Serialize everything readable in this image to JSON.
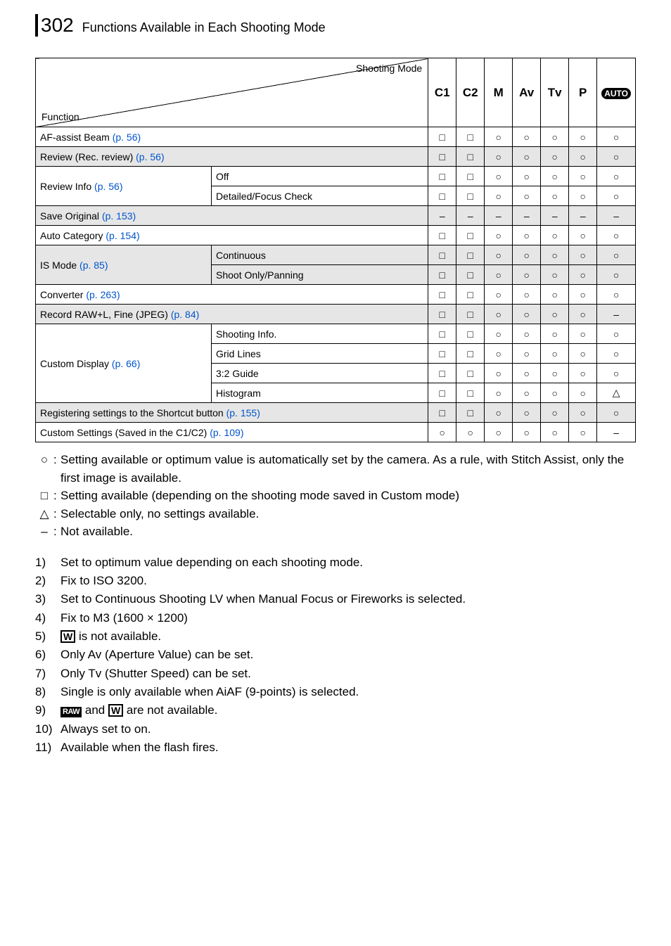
{
  "header": {
    "page_number": "302",
    "title": "Functions Available in Each Shooting Mode"
  },
  "table": {
    "corner": {
      "top": "Shooting Mode",
      "bottom": "Function"
    },
    "modes": [
      "C1",
      "C2",
      "M",
      "Av",
      "Tv",
      "P",
      "AUTO"
    ],
    "rows": [
      {
        "shaded": false,
        "label_parts": [
          "AF-assist Beam ",
          "(p. 56)"
        ],
        "span": 2,
        "cells": [
          "□",
          "□",
          "○",
          "○",
          "○",
          "○",
          "○"
        ]
      },
      {
        "shaded": true,
        "label_parts": [
          "Review (Rec. review) ",
          "(p. 56)"
        ],
        "span": 2,
        "cells": [
          "□",
          "□",
          "○",
          "○",
          "○",
          "○",
          "○"
        ]
      },
      {
        "shaded": false,
        "group_parts": [
          "Review Info ",
          "(p. 56)"
        ],
        "group_rows": 2,
        "sub": "Off",
        "cells": [
          "□",
          "□",
          "○",
          "○",
          "○",
          "○",
          "○"
        ]
      },
      {
        "shaded": false,
        "sub": "Detailed/Focus Check",
        "cells": [
          "□",
          "□",
          "○",
          "○",
          "○",
          "○",
          "○"
        ]
      },
      {
        "shaded": true,
        "label_parts": [
          "Save Original ",
          "(p. 153)"
        ],
        "span": 2,
        "cells": [
          "–",
          "–",
          "–",
          "–",
          "–",
          "–",
          "–"
        ]
      },
      {
        "shaded": false,
        "label_parts": [
          "Auto Category ",
          "(p. 154)"
        ],
        "span": 2,
        "cells": [
          "□",
          "□",
          "○",
          "○",
          "○",
          "○",
          "○"
        ]
      },
      {
        "shaded": true,
        "group_parts": [
          "IS Mode ",
          "(p. 85)"
        ],
        "group_rows": 2,
        "sub": "Continuous",
        "cells": [
          "□",
          "□",
          "○",
          "○",
          "○",
          "○",
          "○"
        ]
      },
      {
        "shaded": true,
        "sub": "Shoot Only/Panning",
        "cells": [
          "□",
          "□",
          "○",
          "○",
          "○",
          "○",
          "○"
        ]
      },
      {
        "shaded": false,
        "label_parts": [
          "Converter ",
          "(p. 263)"
        ],
        "span": 2,
        "cells": [
          "□",
          "□",
          "○",
          "○",
          "○",
          "○",
          "○"
        ]
      },
      {
        "shaded": true,
        "label_parts": [
          "Record RAW+L, Fine (JPEG) ",
          "(p. 84)"
        ],
        "span": 2,
        "cells": [
          "□",
          "□",
          "○",
          "○",
          "○",
          "○",
          "–"
        ]
      },
      {
        "shaded": false,
        "group_parts": [
          "Custom Display ",
          "(p. 66)"
        ],
        "group_rows": 4,
        "sub": "Shooting Info.",
        "cells": [
          "□",
          "□",
          "○",
          "○",
          "○",
          "○",
          "○"
        ]
      },
      {
        "shaded": false,
        "sub": "Grid Lines",
        "cells": [
          "□",
          "□",
          "○",
          "○",
          "○",
          "○",
          "○"
        ]
      },
      {
        "shaded": false,
        "sub": "3:2 Guide",
        "cells": [
          "□",
          "□",
          "○",
          "○",
          "○",
          "○",
          "○"
        ]
      },
      {
        "shaded": false,
        "sub": "Histogram",
        "cells": [
          "□",
          "□",
          "○",
          "○",
          "○",
          "○",
          "△"
        ]
      },
      {
        "shaded": true,
        "label_parts": [
          "Registering settings to the Shortcut button ",
          "(p. 155)"
        ],
        "span": 2,
        "cells": [
          "□",
          "□",
          "○",
          "○",
          "○",
          "○",
          "○"
        ]
      },
      {
        "shaded": false,
        "label_parts": [
          "Custom Settings (Saved in the C1/C2) ",
          "(p. 109)"
        ],
        "span": 2,
        "cells": [
          "○",
          "○",
          "○",
          "○",
          "○",
          "○",
          "–"
        ]
      }
    ]
  },
  "legend": [
    {
      "sym": "○",
      "text": "Setting available or optimum value is automatically set by the camera. As a rule, with Stitch Assist, only the first image is available."
    },
    {
      "sym": "□",
      "text": "Setting available (depending on the shooting mode saved in Custom mode)"
    },
    {
      "sym": "△",
      "text": "Selectable only, no settings available."
    },
    {
      "sym": "–",
      "text": "Not available."
    }
  ],
  "notes": [
    {
      "n": "1)",
      "html": "Set to optimum value depending on each shooting mode."
    },
    {
      "n": "2)",
      "html": "Fix to ISO 3200."
    },
    {
      "n": "3)",
      "html": "Set to Continuous Shooting LV when Manual Focus or Fireworks is selected."
    },
    {
      "n": "4)",
      "html": "Fix to M3 (1600 × 1200)"
    },
    {
      "n": "5)",
      "html": "<span class=\"w-box\">W</span> is not available."
    },
    {
      "n": "6)",
      "html": "Only Av (Aperture Value) can be set."
    },
    {
      "n": "7)",
      "html": "Only Tv (Shutter Speed) can be set."
    },
    {
      "n": "8)",
      "html": "Single is only available when AiAF (9-points) is selected."
    },
    {
      "n": "9)",
      "html": "<span class=\"raw-box\">RAW</span> and <span class=\"w-box\">W</span> are not available."
    },
    {
      "n": "10)",
      "html": "Always set to on."
    },
    {
      "n": "11)",
      "html": "Available when the flash fires."
    }
  ]
}
